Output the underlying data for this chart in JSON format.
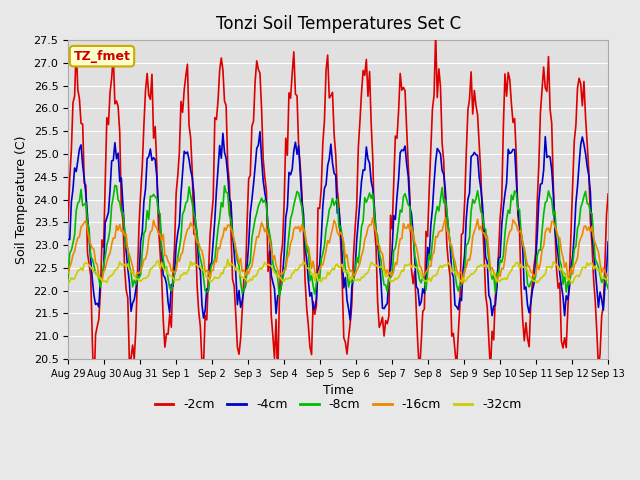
{
  "title": "Tonzi Soil Temperatures Set C",
  "xlabel": "Time",
  "ylabel": "Soil Temperature (C)",
  "ylim": [
    20.5,
    27.5
  ],
  "series": {
    "-2cm": {
      "color": "#dd0000",
      "amplitude": 3.0,
      "mean": 23.8,
      "phase": 0.0,
      "noise": 0.35
    },
    "-4cm": {
      "color": "#0000cc",
      "amplitude": 1.7,
      "mean": 23.4,
      "phase": 0.35,
      "noise": 0.18
    },
    "-8cm": {
      "color": "#00bb00",
      "amplitude": 1.0,
      "mean": 23.1,
      "phase": 0.7,
      "noise": 0.12
    },
    "-16cm": {
      "color": "#ee8800",
      "amplitude": 0.55,
      "mean": 22.9,
      "phase": 1.1,
      "noise": 0.08
    },
    "-32cm": {
      "color": "#cccc00",
      "amplitude": 0.18,
      "mean": 22.4,
      "phase": 1.6,
      "noise": 0.04
    }
  },
  "xtick_labels": [
    "Aug 29",
    "Aug 30",
    "Aug 31",
    "Sep 1",
    "Sep 2",
    "Sep 3",
    "Sep 4",
    "Sep 5",
    "Sep 6",
    "Sep 7",
    "Sep 8",
    "Sep 9",
    "Sep 10",
    "Sep 11",
    "Sep 12",
    "Sep 13"
  ],
  "ytick_labels": [
    "20.5",
    "21.0",
    "21.5",
    "22.0",
    "22.5",
    "23.0",
    "23.5",
    "24.0",
    "24.5",
    "25.0",
    "25.5",
    "26.0",
    "26.5",
    "27.0",
    "27.5"
  ],
  "legend_label": "TZ_fmet",
  "legend_bg": "#ffffcc",
  "legend_border": "#ccaa00",
  "bg_color": "#e8e8e8",
  "plot_bg": "#e0e0e0",
  "grid_color": "#ffffff",
  "linewidth": 1.2,
  "n_points": 336,
  "duration_days": 15
}
